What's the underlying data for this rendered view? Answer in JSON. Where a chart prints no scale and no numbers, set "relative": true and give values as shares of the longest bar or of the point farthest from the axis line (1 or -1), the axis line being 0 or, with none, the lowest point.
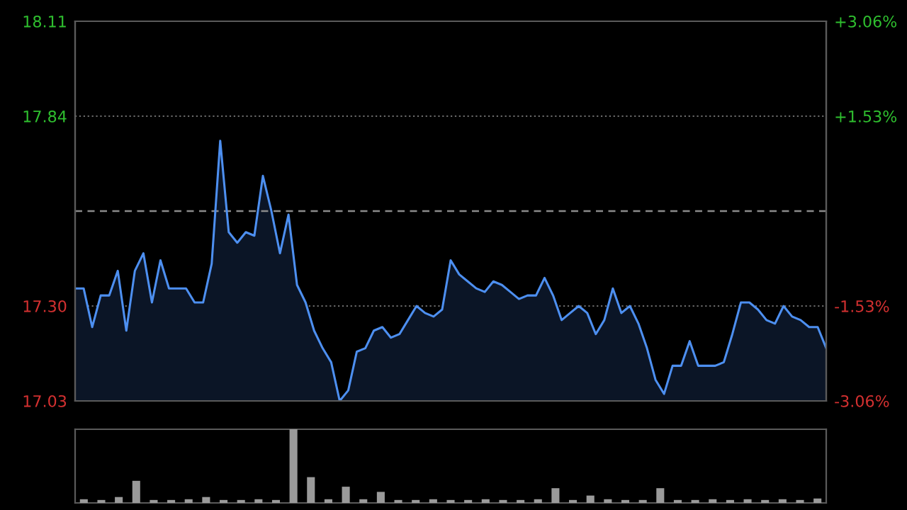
{
  "chart_data": [
    {
      "type": "area",
      "categories": [
        null,
        null,
        null,
        null,
        null,
        null,
        null,
        null,
        null,
        null,
        null,
        null,
        null,
        null,
        null,
        null,
        null,
        null,
        null,
        null,
        null,
        null,
        null,
        null,
        null,
        null,
        null,
        null,
        null,
        null,
        null,
        null,
        null,
        null,
        null,
        null,
        null,
        null,
        null,
        null,
        null,
        null,
        null,
        null,
        null,
        null,
        null,
        null,
        null,
        null,
        null,
        null,
        null,
        null,
        null,
        null,
        null,
        null,
        null,
        null,
        null,
        null,
        null,
        null,
        null,
        null,
        null,
        null,
        null,
        null,
        null,
        null,
        null,
        null,
        null,
        null,
        null,
        null,
        null,
        null,
        null,
        null,
        null,
        null,
        null,
        null,
        null,
        null,
        null
      ],
      "ylim": [
        17.03,
        18.11
      ],
      "yticks": [
        18.11,
        17.84,
        {
          "value": 17.3,
          "label": "17.30"
        },
        17.03
      ],
      "y2lim": [
        -3.06,
        3.06
      ],
      "y2ticks": [
        {
          "value": 3.06,
          "label": "+3.06%"
        },
        {
          "value": 1.53,
          "label": "+1.53%"
        },
        {
          "value": -1.53,
          "label": "-1.53%"
        },
        {
          "value": -3.06,
          "label": "-3.06%"
        }
      ],
      "grid": "y",
      "ref_lines": [
        {
          "axis": "y",
          "value": 17.57,
          "color": "#8a8a8a",
          "line_style": "dashed"
        }
      ],
      "series": [
        {
          "color": "#4d8ff0",
          "values": [
            17.35,
            17.35,
            17.24,
            17.33,
            17.33,
            17.4,
            17.23,
            17.4,
            17.45,
            17.31,
            17.43,
            17.35,
            17.35,
            17.35,
            17.31,
            17.31,
            17.42,
            17.77,
            17.51,
            17.48,
            17.51,
            17.5,
            17.67,
            17.57,
            17.45,
            17.56,
            17.36,
            17.31,
            17.23,
            17.18,
            17.14,
            17.03,
            17.06,
            17.17,
            17.18,
            17.23,
            17.24,
            17.21,
            17.22,
            17.26,
            17.3,
            17.28,
            17.27,
            17.29,
            17.43,
            17.39,
            17.37,
            17.35,
            17.34,
            17.37,
            17.36,
            17.34,
            17.32,
            17.33,
            17.33,
            17.38,
            17.33,
            17.26,
            17.28,
            17.3,
            17.28,
            17.22,
            17.26,
            17.35,
            17.28,
            17.3,
            17.25,
            17.18,
            17.09,
            17.05,
            17.13,
            17.13,
            17.2,
            17.13,
            17.13,
            17.13,
            17.14,
            17.22,
            17.31,
            17.31,
            17.29,
            17.26,
            17.25,
            17.3,
            17.27,
            17.26,
            17.24,
            17.24,
            17.18
          ]
        }
      ]
    },
    {
      "type": "bar",
      "relative": true,
      "categories": [
        null,
        null,
        null,
        null,
        null,
        null,
        null,
        null,
        null,
        null,
        null,
        null,
        null,
        null,
        null,
        null,
        null,
        null,
        null,
        null,
        null,
        null,
        null,
        null,
        null,
        null,
        null,
        null,
        null,
        null,
        null,
        null,
        null,
        null,
        null,
        null,
        null,
        null,
        null,
        null,
        null,
        null,
        null
      ],
      "series": [
        {
          "color": "#9a9a9a",
          "values": [
            0.05,
            0.04,
            0.08,
            0.3,
            0.04,
            0.04,
            0.05,
            0.08,
            0.04,
            0.04,
            0.05,
            0.04,
            1.0,
            0.35,
            0.05,
            0.22,
            0.05,
            0.15,
            0.04,
            0.04,
            0.05,
            0.04,
            0.04,
            0.05,
            0.04,
            0.04,
            0.05,
            0.2,
            0.04,
            0.1,
            0.05,
            0.04,
            0.04,
            0.2,
            0.04,
            0.04,
            0.05,
            0.04,
            0.05,
            0.04,
            0.05,
            0.04,
            0.06
          ]
        }
      ]
    }
  ]
}
